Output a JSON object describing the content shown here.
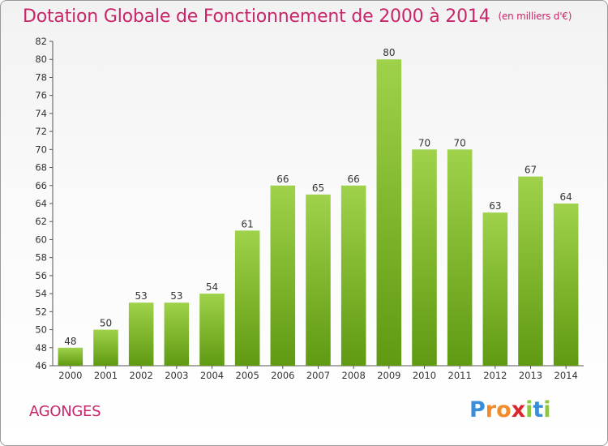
{
  "chart_data": {
    "type": "bar",
    "title": "Dotation Globale de Fonctionnement de 2000 à 2014",
    "subtitle": "(en milliers d'€)",
    "categories": [
      "2000",
      "2001",
      "2002",
      "2003",
      "2004",
      "2005",
      "2006",
      "2007",
      "2008",
      "2009",
      "2010",
      "2011",
      "2012",
      "2013",
      "2014"
    ],
    "values": [
      48,
      50,
      53,
      53,
      54,
      61,
      66,
      65,
      66,
      80,
      70,
      70,
      63,
      67,
      64
    ],
    "ylim": [
      46,
      82
    ],
    "yticks": [
      46,
      48,
      50,
      52,
      54,
      56,
      58,
      60,
      62,
      64,
      66,
      68,
      70,
      72,
      74,
      76,
      78,
      80,
      82
    ],
    "grid": false,
    "bar_color": "#8cc63f"
  },
  "commune": "AGONGES",
  "logo": {
    "text": "Proxiti",
    "letters": [
      {
        "ch": "P",
        "color": "#3a8ed8"
      },
      {
        "ch": "r",
        "color": "#f28c28"
      },
      {
        "ch": "o",
        "color": "#f28c28"
      },
      {
        "ch": "x",
        "color": "#d8262e"
      },
      {
        "ch": "i",
        "color": "#8cc63f"
      },
      {
        "ch": "t",
        "color": "#3a8ed8"
      },
      {
        "ch": "i",
        "color": "#8cc63f"
      }
    ]
  }
}
